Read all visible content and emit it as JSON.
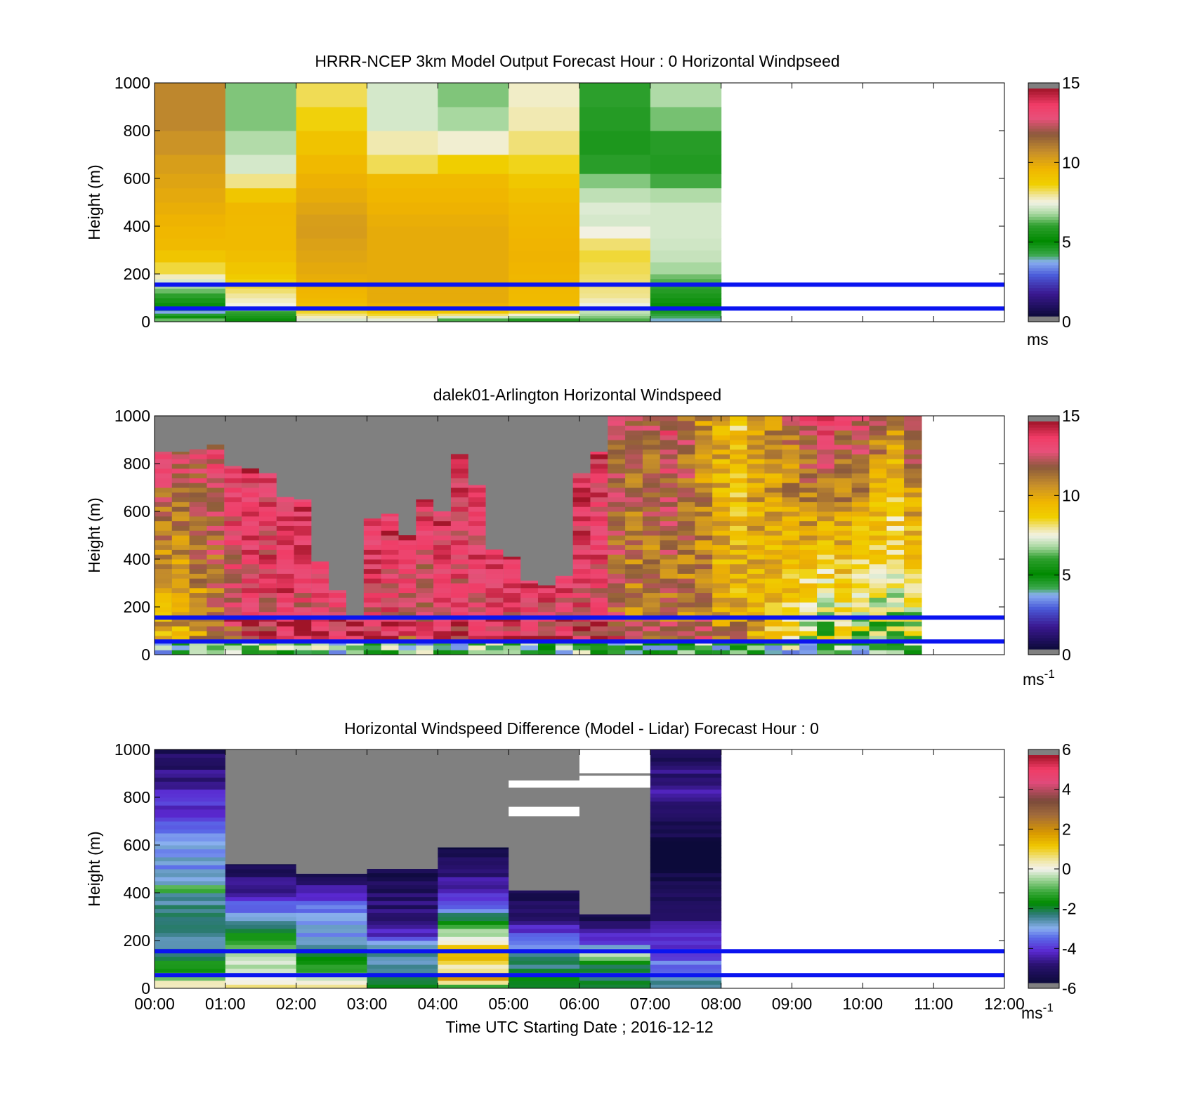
{
  "figure": {
    "x_axis_label": "Time UTC  Starting Date ; 2016-12-12",
    "x_tick_labels": [
      "00:00",
      "01:00",
      "02:00",
      "03:00",
      "04:00",
      "05:00",
      "06:00",
      "07:00",
      "08:00",
      "09:00",
      "10:00",
      "11:00",
      "12:00"
    ],
    "reference_line_color": "#0a14f0",
    "reference_line_heights_m": [
      155,
      55
    ]
  },
  "chart_data": [
    {
      "type": "heatmap",
      "title": "HRRR-NCEP 3km Model Output   Forecast Hour : 0 Horizontal Windpseed",
      "ylabel": "Height (m)",
      "ylim": [
        0,
        1000
      ],
      "yticks": [
        "0",
        "200",
        "400",
        "600",
        "800",
        "1000"
      ],
      "xlim_hours": [
        0,
        12
      ],
      "colorbar": {
        "ticks": [
          "0",
          "5",
          "10",
          "15"
        ],
        "range": [
          0,
          15
        ],
        "unit": "ms"
      },
      "data_extent_hours": [
        0,
        8
      ],
      "columns": [
        {
          "t": 0,
          "profile": [
            [
              0,
              7
            ],
            [
              40,
              3.5
            ],
            [
              90,
              5.5
            ],
            [
              160,
              7
            ],
            [
              200,
              8
            ],
            [
              260,
              9
            ],
            [
              320,
              9.5
            ],
            [
              500,
              10
            ],
            [
              700,
              10.5
            ],
            [
              820,
              11
            ],
            [
              1000,
              11
            ]
          ]
        },
        {
          "t": 1,
          "profile": [
            [
              0,
              5
            ],
            [
              40,
              6
            ],
            [
              70,
              7.5
            ],
            [
              140,
              8.3
            ],
            [
              200,
              9
            ],
            [
              300,
              9.5
            ],
            [
              500,
              9.6
            ],
            [
              640,
              7.2
            ],
            [
              720,
              7.2
            ],
            [
              780,
              6.5
            ],
            [
              900,
              6.5
            ],
            [
              1000,
              6.5
            ]
          ]
        },
        {
          "t": 2,
          "profile": [
            [
              0,
              7
            ],
            [
              40,
              8.5
            ],
            [
              80,
              9.5
            ],
            [
              200,
              10
            ],
            [
              400,
              10.5
            ],
            [
              520,
              10
            ],
            [
              600,
              9.8
            ],
            [
              800,
              9
            ],
            [
              900,
              8.3
            ],
            [
              1000,
              8.3
            ]
          ]
        },
        {
          "t": 3,
          "profile": [
            [
              0,
              7
            ],
            [
              40,
              9
            ],
            [
              80,
              10
            ],
            [
              400,
              10
            ],
            [
              600,
              9.5
            ],
            [
              660,
              8.3
            ],
            [
              760,
              7.8
            ],
            [
              820,
              7.2
            ],
            [
              1000,
              7.2
            ]
          ]
        },
        {
          "t": 4,
          "profile": [
            [
              0,
              5.5
            ],
            [
              40,
              9
            ],
            [
              80,
              10
            ],
            [
              400,
              10
            ],
            [
              600,
              9.5
            ],
            [
              700,
              8.3
            ],
            [
              760,
              7.5
            ],
            [
              880,
              6.5
            ],
            [
              1000,
              6.5
            ]
          ]
        },
        {
          "t": 5,
          "profile": [
            [
              0,
              5
            ],
            [
              40,
              8.5
            ],
            [
              80,
              9.5
            ],
            [
              300,
              9.8
            ],
            [
              500,
              9.5
            ],
            [
              600,
              9
            ],
            [
              700,
              8.3
            ],
            [
              860,
              7.8
            ],
            [
              920,
              7.7
            ],
            [
              1000,
              7.7
            ]
          ]
        },
        {
          "t": 6,
          "profile": [
            [
              0,
              6
            ],
            [
              40,
              7
            ],
            [
              60,
              7.2
            ],
            [
              100,
              8
            ],
            [
              300,
              8.5
            ],
            [
              400,
              7.2
            ],
            [
              420,
              7.2
            ],
            [
              480,
              7.3
            ],
            [
              560,
              6.8
            ],
            [
              700,
              5.5
            ],
            [
              860,
              5.8
            ],
            [
              1000,
              6
            ]
          ]
        },
        {
          "t": 7,
          "profile": [
            [
              0,
              3.5
            ],
            [
              60,
              5
            ],
            [
              150,
              6
            ],
            [
              250,
              7
            ],
            [
              350,
              7.2
            ],
            [
              500,
              7.2
            ],
            [
              600,
              6
            ],
            [
              700,
              5.5
            ],
            [
              860,
              6.5
            ],
            [
              1000,
              7
            ]
          ]
        }
      ]
    },
    {
      "type": "heatmap",
      "title": "dalek01-Arlington  Horizontal Windspeed",
      "ylabel": "Height (m)",
      "ylim": [
        0,
        1000
      ],
      "yticks": [
        "0",
        "200",
        "400",
        "600",
        "800",
        "1000"
      ],
      "xlim_hours": [
        0,
        12
      ],
      "colorbar": {
        "ticks": [
          "0",
          "5",
          "10",
          "15"
        ],
        "range": [
          0,
          15
        ],
        "unit": "ms",
        "unit_superscript": "-1"
      },
      "data_extent_hours": [
        0,
        10.83
      ],
      "gap_color": "#808080",
      "column_tops_m": [
        850,
        850,
        860,
        880,
        790,
        780,
        760,
        660,
        650,
        390,
        270,
        160,
        570,
        590,
        500,
        650,
        600,
        840,
        710,
        440,
        410,
        310,
        290,
        330,
        760,
        850,
        1000,
        1000,
        1000,
        1000,
        1000,
        1000,
        1000,
        1000,
        1000,
        1000,
        1000,
        1000,
        1000,
        1000,
        1000,
        1000,
        1000,
        1000
      ],
      "column_lower_speed_ms": [
        9,
        9,
        10,
        11,
        12,
        13,
        13,
        14,
        13,
        13,
        13,
        13,
        13,
        13,
        12,
        12,
        13,
        13,
        13,
        13,
        13,
        13,
        13,
        13,
        13,
        13,
        12,
        11,
        11,
        11,
        11,
        11,
        10,
        10,
        9,
        9,
        8,
        7,
        6,
        7,
        6,
        6,
        6,
        6
      ],
      "column_upper_speed_ms": [
        13,
        13,
        13,
        13,
        14,
        14,
        14,
        14,
        14,
        14,
        14,
        14,
        14,
        14,
        14,
        14,
        14,
        14,
        14,
        14,
        14,
        14,
        14,
        14,
        14,
        14,
        12,
        12,
        12,
        13,
        12,
        11,
        10,
        9,
        11,
        11,
        12,
        13,
        14,
        13,
        13,
        12,
        11,
        13
      ]
    },
    {
      "type": "heatmap",
      "title": "Horizontal Windspeed Difference (Model - Lidar) Forecast Hour : 0",
      "ylabel": "Height (m)",
      "ylim": [
        0,
        1000
      ],
      "yticks": [
        "0",
        "200",
        "400",
        "600",
        "800",
        "1000"
      ],
      "xlim_hours": [
        0,
        12
      ],
      "colorbar": {
        "ticks": [
          "-6",
          "-4",
          "-2",
          "0",
          "2",
          "4",
          "6"
        ],
        "range": [
          -6,
          6
        ],
        "unit": "ms",
        "unit_superscript": "-1"
      },
      "data_extent_hours": [
        0,
        8
      ],
      "gap_color": "#808080",
      "columns": [
        {
          "t": 0,
          "top": 1000,
          "profile": [
            [
              0,
              1
            ],
            [
              40,
              -0.5
            ],
            [
              80,
              -1.5
            ],
            [
              180,
              -2.5
            ],
            [
              400,
              -2.5
            ],
            [
              420,
              -0.3
            ],
            [
              440,
              -2.5
            ],
            [
              500,
              -3.2
            ],
            [
              560,
              -3
            ],
            [
              620,
              -3.5
            ],
            [
              700,
              -4
            ],
            [
              800,
              -4.3
            ],
            [
              900,
              -5
            ],
            [
              1000,
              -5.5
            ]
          ]
        },
        {
          "t": 1,
          "top": 520,
          "profile": [
            [
              0,
              1
            ],
            [
              40,
              0
            ],
            [
              80,
              -0.2
            ],
            [
              180,
              -1
            ],
            [
              240,
              -2
            ],
            [
              300,
              -3
            ],
            [
              400,
              -4.5
            ],
            [
              460,
              -5
            ],
            [
              520,
              -5.5
            ]
          ]
        },
        {
          "t": 2,
          "top": 480,
          "profile": [
            [
              0,
              0.5
            ],
            [
              40,
              -0.5
            ],
            [
              100,
              -1.5
            ],
            [
              200,
              -3
            ],
            [
              300,
              -3.3
            ],
            [
              380,
              -4.2
            ],
            [
              440,
              -5
            ],
            [
              480,
              -5.5
            ]
          ]
        },
        {
          "t": 3,
          "top": 500,
          "profile": [
            [
              0,
              -2
            ],
            [
              60,
              -2.5
            ],
            [
              160,
              -2.8
            ],
            [
              240,
              -4.6
            ],
            [
              300,
              -5
            ],
            [
              400,
              -5.3
            ],
            [
              460,
              -5.5
            ],
            [
              500,
              -5.8
            ]
          ]
        },
        {
          "t": 4,
          "top": 590,
          "profile": [
            [
              0,
              -2.5
            ],
            [
              40,
              2
            ],
            [
              80,
              0.5
            ],
            [
              160,
              1.5
            ],
            [
              200,
              0
            ],
            [
              260,
              -1
            ],
            [
              320,
              -3
            ],
            [
              400,
              -4.5
            ],
            [
              480,
              -5
            ],
            [
              560,
              -5.5
            ],
            [
              590,
              -5.8
            ]
          ]
        },
        {
          "t": 5,
          "top": 410,
          "profile": [
            [
              0,
              -2
            ],
            [
              60,
              -2
            ],
            [
              160,
              -3
            ],
            [
              220,
              -4
            ],
            [
              300,
              -5
            ],
            [
              360,
              -5.5
            ],
            [
              410,
              -5.8
            ]
          ]
        },
        {
          "t": 6,
          "top": 310,
          "profile": [
            [
              0,
              -2
            ],
            [
              60,
              -2.8
            ],
            [
              160,
              0
            ],
            [
              180,
              -3.5
            ],
            [
              220,
              -4.5
            ],
            [
              260,
              -5.2
            ],
            [
              310,
              -5.8
            ]
          ]
        },
        {
          "t": 7,
          "top": 1000,
          "profile": [
            [
              0,
              -2.5
            ],
            [
              60,
              -3.2
            ],
            [
              140,
              -4
            ],
            [
              200,
              -4.2
            ],
            [
              300,
              -5
            ],
            [
              400,
              -5.5
            ],
            [
              500,
              -5.8
            ],
            [
              600,
              -5.9
            ],
            [
              700,
              -5.5
            ],
            [
              800,
              -4.8
            ],
            [
              900,
              -5
            ],
            [
              1000,
              -5.6
            ]
          ]
        }
      ],
      "gaps": [
        {
          "t0": 5,
          "t1": 6,
          "y0": 720,
          "y1": 760
        },
        {
          "t0": 5,
          "t1": 6,
          "y0": 840,
          "y1": 870
        },
        {
          "t0": 6,
          "t1": 7,
          "y0": 900,
          "y1": 1000
        },
        {
          "t0": 6,
          "t1": 7,
          "y0": 840,
          "y1": 890
        }
      ]
    }
  ]
}
